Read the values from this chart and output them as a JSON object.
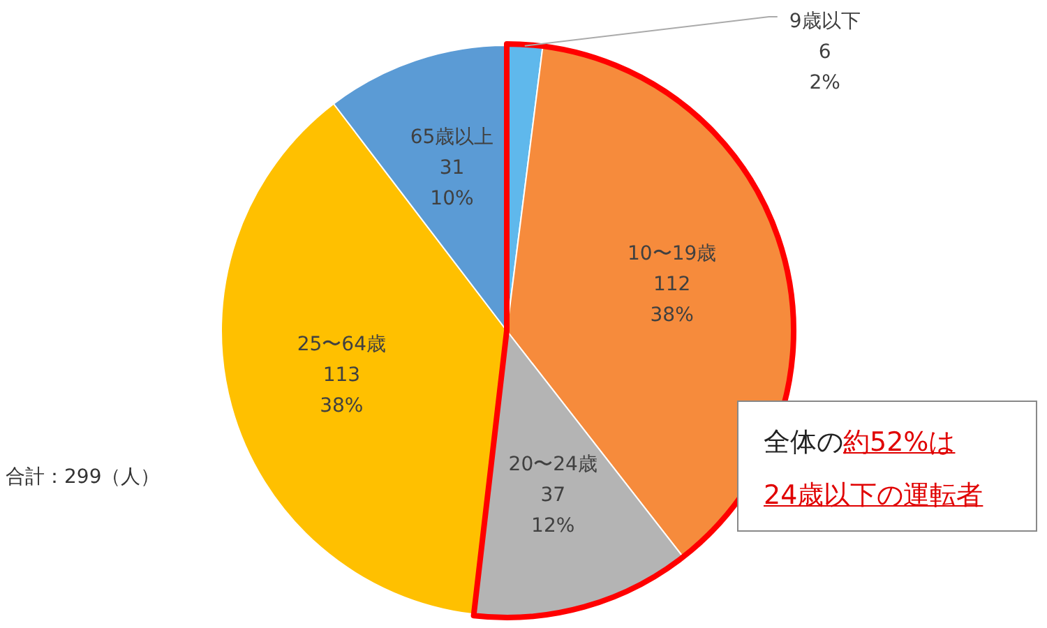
{
  "chart_data": {
    "type": "pie",
    "categories": [
      "9歳以下",
      "10〜19歳",
      "20〜24歳",
      "25〜64歳",
      "65歳以上"
    ],
    "values": [
      6,
      112,
      37,
      113,
      31
    ],
    "value_labels": [
      "6\n2%",
      "112\n38%",
      "37\n12%",
      "113\n38%",
      "31\n10%"
    ],
    "colors": [
      "#5fb8ec",
      "#f68b3c",
      "#b4b4b4",
      "#ffc000",
      "#5b9bd5"
    ],
    "data_labels": true,
    "legend": false,
    "annotations": [
      "全体の",
      "約52%は",
      "24歳以下の運転者",
      "合計：299（人）"
    ]
  }
}
